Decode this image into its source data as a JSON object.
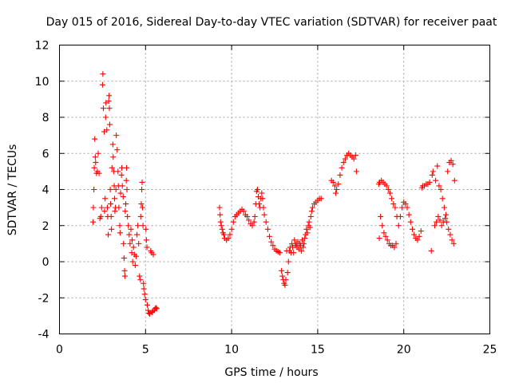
{
  "chart_data": {
    "type": "scatter",
    "title": "Day 015 of 2016, Sidereal Day-to-day VTEC variation (SDTVAR) for receiver paat",
    "xlabel": "GPS time / hours",
    "ylabel": "SDTVAR / TECUs",
    "xlim": [
      0,
      25
    ],
    "ylim": [
      -4,
      12
    ],
    "xticks": [
      0,
      5,
      10,
      15,
      20,
      25
    ],
    "xtick_labels": [
      "0",
      "5",
      "10",
      "15",
      "20",
      "25"
    ],
    "yticks": [
      -4,
      -2,
      0,
      2,
      4,
      6,
      8,
      10,
      12
    ],
    "ytick_labels": [
      "-4",
      "-2",
      "0",
      "2",
      "4",
      "6",
      "8",
      "10",
      "12"
    ],
    "grid": true,
    "marker": "+",
    "color": "#ff0000",
    "series": [
      {
        "name": "SDTVAR",
        "points": [
          [
            1.95,
            2.2
          ],
          [
            1.97,
            3.0
          ],
          [
            2.0,
            4.0
          ],
          [
            2.02,
            5.2
          ],
          [
            2.05,
            6.8
          ],
          [
            2.08,
            5.8
          ],
          [
            2.1,
            5.5
          ],
          [
            2.15,
            4.9
          ],
          [
            2.2,
            5.0
          ],
          [
            2.25,
            6.0
          ],
          [
            2.3,
            4.9
          ],
          [
            2.35,
            2.4
          ],
          [
            2.4,
            2.5
          ],
          [
            2.45,
            3.0
          ],
          [
            2.5,
            9.8
          ],
          [
            2.52,
            10.4
          ],
          [
            2.55,
            8.5
          ],
          [
            2.6,
            7.2
          ],
          [
            2.62,
            2.8
          ],
          [
            2.65,
            3.5
          ],
          [
            2.68,
            8.0
          ],
          [
            2.7,
            8.8
          ],
          [
            2.75,
            7.3
          ],
          [
            2.78,
            3.0
          ],
          [
            2.8,
            2.5
          ],
          [
            2.83,
            1.5
          ],
          [
            2.86,
            8.9
          ],
          [
            2.88,
            9.2
          ],
          [
            2.9,
            8.5
          ],
          [
            2.92,
            7.6
          ],
          [
            2.95,
            4.0
          ],
          [
            2.97,
            3.2
          ],
          [
            3.0,
            2.5
          ],
          [
            3.02,
            1.8
          ],
          [
            3.05,
            5.2
          ],
          [
            3.1,
            6.5
          ],
          [
            3.12,
            5.8
          ],
          [
            3.15,
            5.0
          ],
          [
            3.18,
            4.2
          ],
          [
            3.2,
            3.5
          ],
          [
            3.22,
            2.8
          ],
          [
            3.25,
            3.0
          ],
          [
            3.28,
            4.0
          ],
          [
            3.3,
            7.0
          ],
          [
            3.35,
            6.2
          ],
          [
            3.4,
            5.0
          ],
          [
            3.42,
            4.2
          ],
          [
            3.45,
            3.0
          ],
          [
            3.5,
            2.0
          ],
          [
            3.52,
            1.6
          ],
          [
            3.55,
            3.8
          ],
          [
            3.6,
            4.8
          ],
          [
            3.62,
            5.2
          ],
          [
            3.65,
            4.2
          ],
          [
            3.7,
            3.6
          ],
          [
            3.72,
            1.0
          ],
          [
            3.75,
            0.2
          ],
          [
            3.78,
            -0.5
          ],
          [
            3.8,
            -0.8
          ],
          [
            3.82,
            2.8
          ],
          [
            3.85,
            3.2
          ],
          [
            3.88,
            4.5
          ],
          [
            3.9,
            5.2
          ],
          [
            3.92,
            4.0
          ],
          [
            3.95,
            2.5
          ],
          [
            4.0,
            2.0
          ],
          [
            4.05,
            1.5
          ],
          [
            4.1,
            1.0
          ],
          [
            4.15,
            1.8
          ],
          [
            4.2,
            0.5
          ],
          [
            4.22,
            1.2
          ],
          [
            4.25,
            0.0
          ],
          [
            4.3,
            0.8
          ],
          [
            4.35,
            0.4
          ],
          [
            4.4,
            -0.2
          ],
          [
            4.45,
            0.3
          ],
          [
            4.5,
            1.5
          ],
          [
            4.55,
            2.0
          ],
          [
            4.6,
            1.0
          ],
          [
            4.65,
            -0.8
          ],
          [
            4.7,
            -1.0
          ],
          [
            4.72,
            2.5
          ],
          [
            4.75,
            3.2
          ],
          [
            4.78,
            4.0
          ],
          [
            4.8,
            4.4
          ],
          [
            4.82,
            3.0
          ],
          [
            4.85,
            2.0
          ],
          [
            4.88,
            -1.2
          ],
          [
            4.9,
            -1.5
          ],
          [
            4.95,
            -1.8
          ],
          [
            5.0,
            -2.1
          ],
          [
            5.02,
            1.8
          ],
          [
            5.05,
            1.2
          ],
          [
            5.08,
            0.8
          ],
          [
            5.1,
            -2.4
          ],
          [
            5.15,
            -2.7
          ],
          [
            5.2,
            -2.85
          ],
          [
            5.25,
            -2.9
          ],
          [
            5.3,
            0.6
          ],
          [
            5.35,
            0.5
          ],
          [
            5.38,
            -2.8
          ],
          [
            5.4,
            -2.75
          ],
          [
            5.45,
            0.4
          ],
          [
            5.5,
            -2.7
          ],
          [
            5.55,
            -2.6
          ],
          [
            5.6,
            -2.55
          ],
          [
            5.65,
            -2.6
          ],
          [
            9.3,
            3.0
          ],
          [
            9.33,
            2.6
          ],
          [
            9.36,
            2.2
          ],
          [
            9.4,
            2.0
          ],
          [
            9.45,
            1.8
          ],
          [
            9.5,
            1.6
          ],
          [
            9.55,
            1.5
          ],
          [
            9.6,
            1.3
          ],
          [
            9.7,
            1.2
          ],
          [
            9.8,
            1.3
          ],
          [
            9.9,
            1.5
          ],
          [
            10.0,
            1.8
          ],
          [
            10.1,
            2.2
          ],
          [
            10.2,
            2.5
          ],
          [
            10.3,
            2.6
          ],
          [
            10.4,
            2.7
          ],
          [
            10.5,
            2.8
          ],
          [
            10.6,
            2.9
          ],
          [
            10.7,
            2.8
          ],
          [
            10.8,
            2.6
          ],
          [
            10.9,
            2.5
          ],
          [
            11.0,
            2.3
          ],
          [
            11.1,
            2.1
          ],
          [
            11.2,
            2.0
          ],
          [
            11.3,
            2.2
          ],
          [
            11.35,
            2.5
          ],
          [
            11.4,
            3.2
          ],
          [
            11.45,
            3.9
          ],
          [
            11.5,
            4.0
          ],
          [
            11.55,
            3.6
          ],
          [
            11.6,
            3.2
          ],
          [
            11.65,
            3.0
          ],
          [
            11.7,
            3.5
          ],
          [
            11.75,
            3.8
          ],
          [
            11.8,
            3.5
          ],
          [
            11.85,
            3.0
          ],
          [
            11.9,
            2.6
          ],
          [
            12.0,
            2.2
          ],
          [
            12.1,
            1.8
          ],
          [
            12.2,
            1.4
          ],
          [
            12.3,
            1.1
          ],
          [
            12.4,
            0.9
          ],
          [
            12.5,
            0.7
          ],
          [
            12.6,
            0.6
          ],
          [
            12.7,
            0.55
          ],
          [
            12.8,
            0.5
          ],
          [
            12.9,
            -0.5
          ],
          [
            12.95,
            -0.8
          ],
          [
            13.0,
            -1.0
          ],
          [
            13.05,
            -1.2
          ],
          [
            13.1,
            -1.3
          ],
          [
            13.15,
            -1.0
          ],
          [
            13.2,
            0.6
          ],
          [
            13.25,
            -0.6
          ],
          [
            13.3,
            0.0
          ],
          [
            13.35,
            0.6
          ],
          [
            13.4,
            0.8
          ],
          [
            13.45,
            0.5
          ],
          [
            13.5,
            1.0
          ],
          [
            13.55,
            0.8
          ],
          [
            13.6,
            0.5
          ],
          [
            13.65,
            1.2
          ],
          [
            13.7,
            0.9
          ],
          [
            13.75,
            1.0
          ],
          [
            13.8,
            0.8
          ],
          [
            13.85,
            1.1
          ],
          [
            13.9,
            0.7
          ],
          [
            13.95,
            1.0
          ],
          [
            14.0,
            0.9
          ],
          [
            14.05,
            0.6
          ],
          [
            14.1,
            1.2
          ],
          [
            14.15,
            0.8
          ],
          [
            14.2,
            1.0
          ],
          [
            14.25,
            1.3
          ],
          [
            14.3,
            1.5
          ],
          [
            14.35,
            1.8
          ],
          [
            14.4,
            1.6
          ],
          [
            14.45,
            2.0
          ],
          [
            14.5,
            2.2
          ],
          [
            14.55,
            1.9
          ],
          [
            14.6,
            2.5
          ],
          [
            14.65,
            2.8
          ],
          [
            14.7,
            3.0
          ],
          [
            14.8,
            3.2
          ],
          [
            14.9,
            3.3
          ],
          [
            15.0,
            3.4
          ],
          [
            15.1,
            3.5
          ],
          [
            15.2,
            3.5
          ],
          [
            15.8,
            4.5
          ],
          [
            15.9,
            4.4
          ],
          [
            16.0,
            4.2
          ],
          [
            16.05,
            3.8
          ],
          [
            16.1,
            4.0
          ],
          [
            16.2,
            4.3
          ],
          [
            16.3,
            4.8
          ],
          [
            16.4,
            5.2
          ],
          [
            16.5,
            5.5
          ],
          [
            16.6,
            5.7
          ],
          [
            16.7,
            5.9
          ],
          [
            16.8,
            6.0
          ],
          [
            16.9,
            5.9
          ],
          [
            17.0,
            5.8
          ],
          [
            17.1,
            5.7
          ],
          [
            17.2,
            5.9
          ],
          [
            17.25,
            5.0
          ],
          [
            18.55,
            4.3
          ],
          [
            18.58,
            1.3
          ],
          [
            18.6,
            4.4
          ],
          [
            18.65,
            2.5
          ],
          [
            18.7,
            4.5
          ],
          [
            18.75,
            2.0
          ],
          [
            18.8,
            4.4
          ],
          [
            18.85,
            1.6
          ],
          [
            18.9,
            4.3
          ],
          [
            18.95,
            1.4
          ],
          [
            19.0,
            4.2
          ],
          [
            19.05,
            1.2
          ],
          [
            19.1,
            4.0
          ],
          [
            19.15,
            1.0
          ],
          [
            19.2,
            3.8
          ],
          [
            19.25,
            0.9
          ],
          [
            19.3,
            3.5
          ],
          [
            19.35,
            0.9
          ],
          [
            19.4,
            3.2
          ],
          [
            19.45,
            0.8
          ],
          [
            19.5,
            3.0
          ],
          [
            19.55,
            1.0
          ],
          [
            19.6,
            2.5
          ],
          [
            19.7,
            2.0
          ],
          [
            19.8,
            2.5
          ],
          [
            19.9,
            3.0
          ],
          [
            20.0,
            3.3
          ],
          [
            20.1,
            3.2
          ],
          [
            20.2,
            3.0
          ],
          [
            20.3,
            2.6
          ],
          [
            20.4,
            2.2
          ],
          [
            20.5,
            1.8
          ],
          [
            20.6,
            1.5
          ],
          [
            20.7,
            1.3
          ],
          [
            20.8,
            1.2
          ],
          [
            20.9,
            1.4
          ],
          [
            21.0,
            1.7
          ],
          [
            21.05,
            4.1
          ],
          [
            21.1,
            4.2
          ],
          [
            21.2,
            4.2
          ],
          [
            21.3,
            4.3
          ],
          [
            21.4,
            4.3
          ],
          [
            21.5,
            4.4
          ],
          [
            21.6,
            0.6
          ],
          [
            21.65,
            4.8
          ],
          [
            21.7,
            5.0
          ],
          [
            21.8,
            2.0
          ],
          [
            21.85,
            4.5
          ],
          [
            21.9,
            2.2
          ],
          [
            21.95,
            5.3
          ],
          [
            22.0,
            2.5
          ],
          [
            22.05,
            4.2
          ],
          [
            22.1,
            2.3
          ],
          [
            22.15,
            4.0
          ],
          [
            22.2,
            2.0
          ],
          [
            22.25,
            3.5
          ],
          [
            22.3,
            2.2
          ],
          [
            22.35,
            3.0
          ],
          [
            22.4,
            2.4
          ],
          [
            22.45,
            2.6
          ],
          [
            22.5,
            2.2
          ],
          [
            22.55,
            5.0
          ],
          [
            22.6,
            1.8
          ],
          [
            22.65,
            5.5
          ],
          [
            22.7,
            1.5
          ],
          [
            22.75,
            5.6
          ],
          [
            22.8,
            1.2
          ],
          [
            22.85,
            5.4
          ],
          [
            22.9,
            1.0
          ],
          [
            22.95,
            4.5
          ]
        ]
      }
    ]
  }
}
